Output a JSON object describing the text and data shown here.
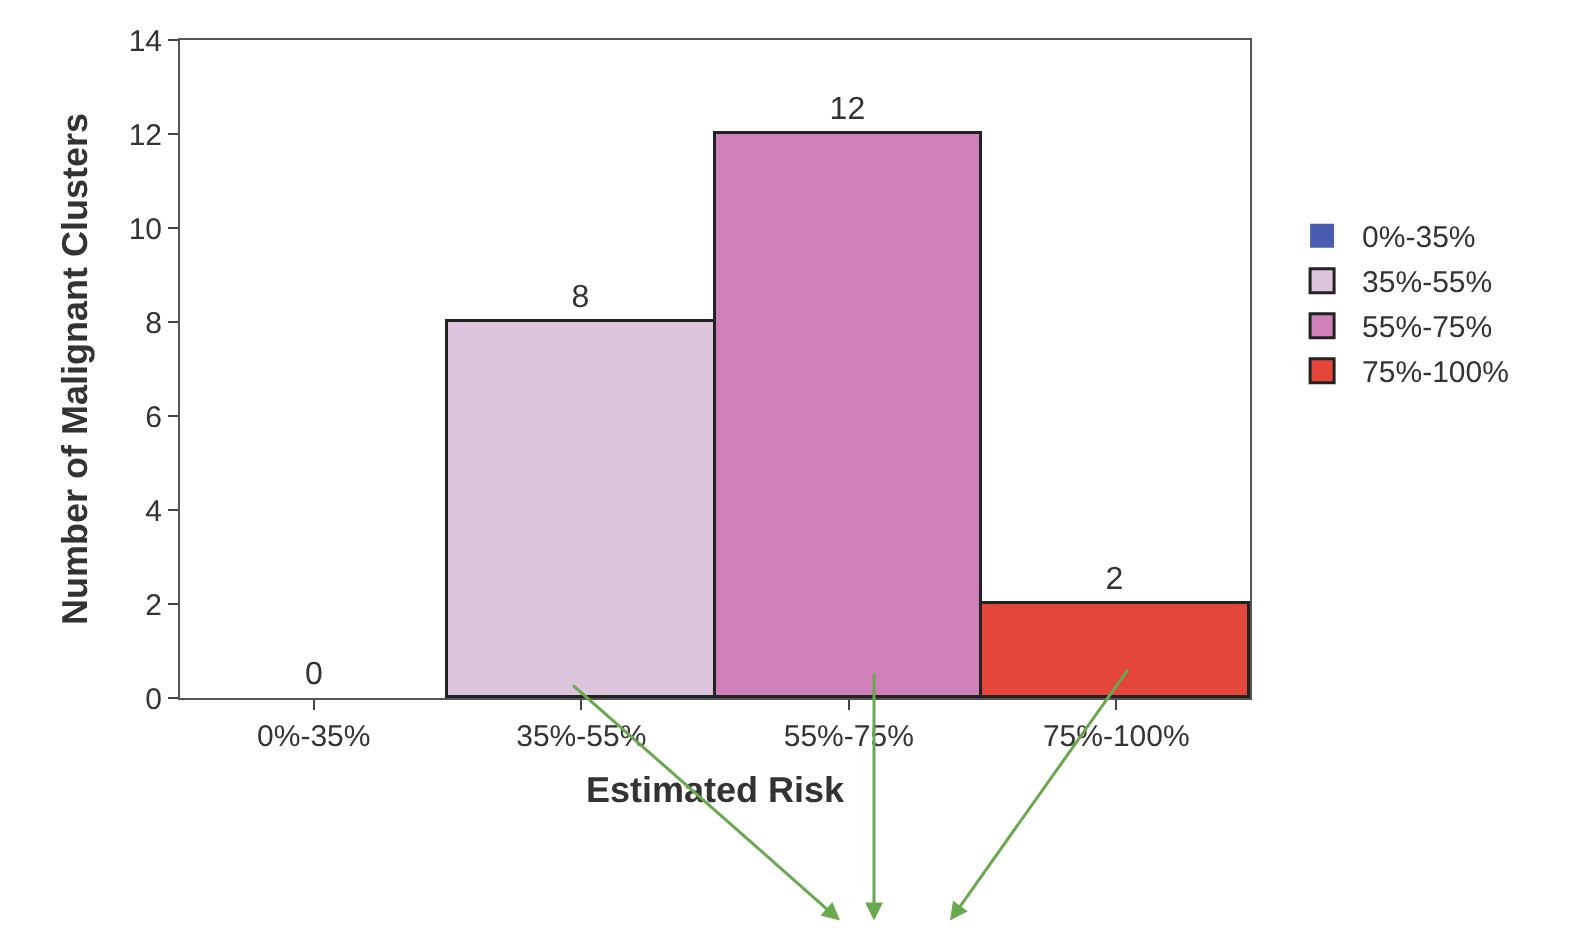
{
  "chart_data": {
    "type": "bar",
    "xlabel": "Estimated Risk",
    "ylabel": "Number of Malignant Clusters",
    "categories": [
      "0%-35%",
      "35%-55%",
      "55%-75%",
      "75%-100%"
    ],
    "series": [
      {
        "name": "0%-35%",
        "color": "#4a5cb0",
        "values": [
          0,
          null,
          null,
          null
        ]
      },
      {
        "name": "35%-55%",
        "color": "#dcc4dc",
        "values": [
          null,
          8,
          null,
          null
        ]
      },
      {
        "name": "55%-75%",
        "color": "#d080b8",
        "values": [
          null,
          null,
          12,
          null
        ]
      },
      {
        "name": "75%-100%",
        "color": "#e5463a",
        "values": [
          null,
          null,
          null,
          2
        ]
      }
    ],
    "ylim": [
      0,
      14
    ],
    "yticks": [
      0,
      2,
      4,
      6,
      8,
      10,
      12,
      14
    ],
    "data_labels": true,
    "legend": "right"
  }
}
